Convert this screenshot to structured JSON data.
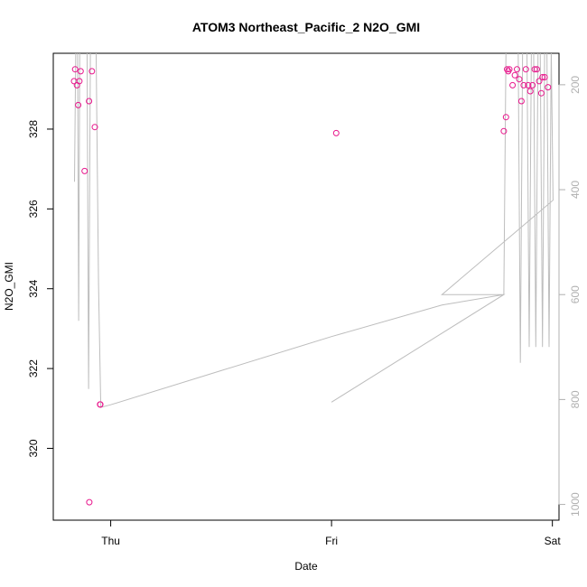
{
  "chart_data": {
    "type": "scatter",
    "title": "ATOM3 Northeast_Pacific_2 N2O_GMI",
    "xlabel": "Date",
    "ylabel": "N2O_GMI",
    "x_ticks": [
      {
        "value": 0,
        "label": "Thu"
      },
      {
        "value": 1,
        "label": "Fri"
      },
      {
        "value": 2,
        "label": "Sat"
      }
    ],
    "xlim": [
      -0.26,
      2.03
    ],
    "ylim": [
      318.2,
      329.9
    ],
    "y_ticks": [
      320,
      322,
      324,
      326,
      328
    ],
    "y2_label": "",
    "y2_ticks": [
      200,
      400,
      600,
      800,
      1000
    ],
    "y2lim": [
      1030,
      140
    ],
    "grid": false,
    "colors": {
      "points": "#e8168c",
      "line": "#bdbdbd",
      "y2_axis": "#b0b0b0"
    },
    "series": [
      {
        "kind": "points",
        "axis": "left",
        "x": [
          -0.166,
          -0.161,
          -0.153,
          -0.147,
          -0.142,
          -0.136,
          -0.118,
          -0.097,
          -0.098,
          -0.085,
          -0.072,
          -0.048,
          -0.047,
          1.021,
          1.78,
          1.79,
          1.795,
          1.8,
          1.805,
          1.82,
          1.83,
          1.84,
          1.85,
          1.86,
          1.87,
          1.88,
          1.89,
          1.9,
          1.91,
          1.92,
          1.93,
          1.94,
          1.95,
          1.965,
          1.98,
          1.955
        ],
        "y": [
          329.2,
          329.5,
          329.1,
          328.6,
          329.2,
          329.45,
          326.95,
          318.65,
          328.7,
          329.45,
          328.05,
          321.1,
          321.1,
          327.9,
          327.95,
          328.3,
          329.5,
          329.45,
          329.5,
          329.1,
          329.35,
          329.5,
          329.25,
          328.7,
          329.1,
          329.5,
          329.1,
          328.95,
          329.1,
          329.5,
          329.5,
          329.2,
          328.9,
          329.3,
          329.05,
          329.3
        ]
      },
      {
        "kind": "line",
        "axis": "right",
        "x": [
          -0.164,
          -0.158,
          -0.15,
          -0.145,
          -0.14,
          -0.133,
          -0.125,
          -0.117,
          -0.107,
          -0.1,
          -0.092,
          -0.084,
          -0.075,
          -0.066,
          -0.055,
          -0.045,
          0.0,
          0.5,
          1.0,
          1.5,
          1.78,
          1.79,
          1.8,
          1.81,
          1.82,
          1.83,
          1.845,
          1.855,
          1.865,
          1.875,
          1.885,
          1.895,
          1.905,
          1.915,
          1.925,
          1.935,
          1.945,
          1.955,
          1.965,
          1.975,
          1.985,
          1.995,
          2.003,
          1.5,
          1.78,
          1.0
        ],
        "y": [
          385,
          130,
          130,
          650,
          130,
          130,
          130,
          130,
          130,
          780,
          130,
          130,
          130,
          130,
          580,
          815,
          810,
          745,
          680,
          620,
          600,
          130,
          130,
          130,
          130,
          130,
          130,
          730,
          130,
          130,
          130,
          700,
          130,
          130,
          700,
          130,
          130,
          700,
          130,
          130,
          700,
          130,
          420,
          600,
          600,
          805
        ]
      }
    ]
  }
}
